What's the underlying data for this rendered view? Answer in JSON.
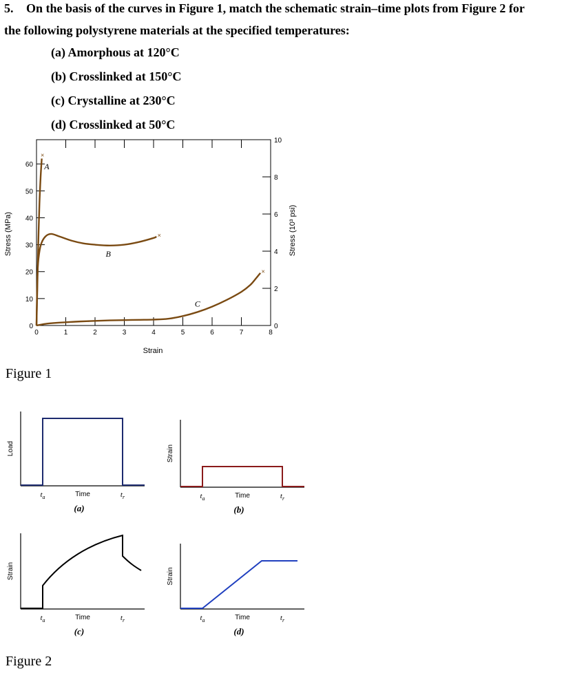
{
  "question": {
    "number": "5.",
    "line1": "On the basis of the curves in Figure 1, match the schematic strain–time plots from Figure 2 for",
    "line2": "the following polystyrene materials at the specified temperatures:",
    "items": [
      "(a) Amorphous at 120°C",
      "(b) Crosslinked at 150°C",
      "(c) Crystalline at 230°C",
      "(d) Crosslinked at 50°C"
    ]
  },
  "figure1": {
    "caption": "Figure 1",
    "chart_data": {
      "type": "line",
      "xlabel": "Strain",
      "ylabel": "Stress (MPa)",
      "y2label": "Stress (10³ psi)",
      "xlim": [
        0,
        8
      ],
      "ylim": [
        0,
        69
      ],
      "y2lim": [
        0,
        10
      ],
      "xticks": [
        0,
        1,
        2,
        3,
        4,
        5,
        6,
        7,
        8
      ],
      "yticks": [
        0,
        10,
        20,
        30,
        40,
        50,
        60
      ],
      "y2ticks": [
        0,
        2,
        4,
        6,
        8,
        10
      ],
      "grid": false,
      "series": [
        {
          "name": "A",
          "x": [
            0,
            0.03,
            0.06,
            0.1,
            0.14,
            0.18
          ],
          "y": [
            0,
            15,
            30,
            45,
            55,
            62
          ],
          "color": "#7a4a12",
          "break": "x"
        },
        {
          "name": "B",
          "x": [
            0,
            0.03,
            0.07,
            0.15,
            0.3,
            0.5,
            0.8,
            1.2,
            1.6,
            2.0,
            2.5,
            3.0,
            3.5,
            4.0,
            4.1
          ],
          "y": [
            0,
            18,
            25,
            30,
            33,
            34,
            33,
            31.5,
            30.5,
            30,
            29.7,
            30,
            31,
            32.5,
            33
          ],
          "color": "#7a4a12",
          "break": "x"
        },
        {
          "name": "C",
          "x": [
            0,
            0.3,
            0.7,
            1.0,
            1.5,
            2.0,
            2.5,
            3.0,
            3.5,
            4.0,
            4.5,
            5.0,
            5.5,
            6.0,
            6.5,
            7.0,
            7.3,
            7.5,
            7.65
          ],
          "y": [
            0,
            0.6,
            1.0,
            1.2,
            1.5,
            1.7,
            1.9,
            2.0,
            2.1,
            2.2,
            2.5,
            3.5,
            5,
            7,
            9.5,
            12.5,
            15,
            17.5,
            19.5
          ],
          "color": "#7a4a12",
          "break": "x"
        }
      ]
    }
  },
  "figure2": {
    "caption": "Figure 2",
    "plots": [
      {
        "id": "a",
        "label": "(a)",
        "ylabel": "Load",
        "xlabel": "Time",
        "t_a": "t",
        "t_a_sub": "a",
        "t_r": "t",
        "t_r_sub": "r",
        "shape": "step",
        "line_color": "#1c2a6e"
      },
      {
        "id": "b",
        "label": "(b)",
        "ylabel": "Strain",
        "xlabel": "Time",
        "t_a": "t",
        "t_a_sub": "a",
        "t_r": "t",
        "t_r_sub": "r",
        "shape": "step",
        "line_color": "#8a1a1a"
      },
      {
        "id": "c",
        "label": "(c)",
        "ylabel": "Strain",
        "xlabel": "Time",
        "t_a": "t",
        "t_a_sub": "a",
        "t_r": "t",
        "t_r_sub": "r",
        "shape": "viscoelastic",
        "line_color": "#000000"
      },
      {
        "id": "d",
        "label": "(d)",
        "ylabel": "Strain",
        "xlabel": "Time",
        "t_a": "t",
        "t_a_sub": "a",
        "t_r": "t",
        "t_r_sub": "r",
        "shape": "viscous",
        "line_color": "#1f3fbf"
      }
    ]
  }
}
